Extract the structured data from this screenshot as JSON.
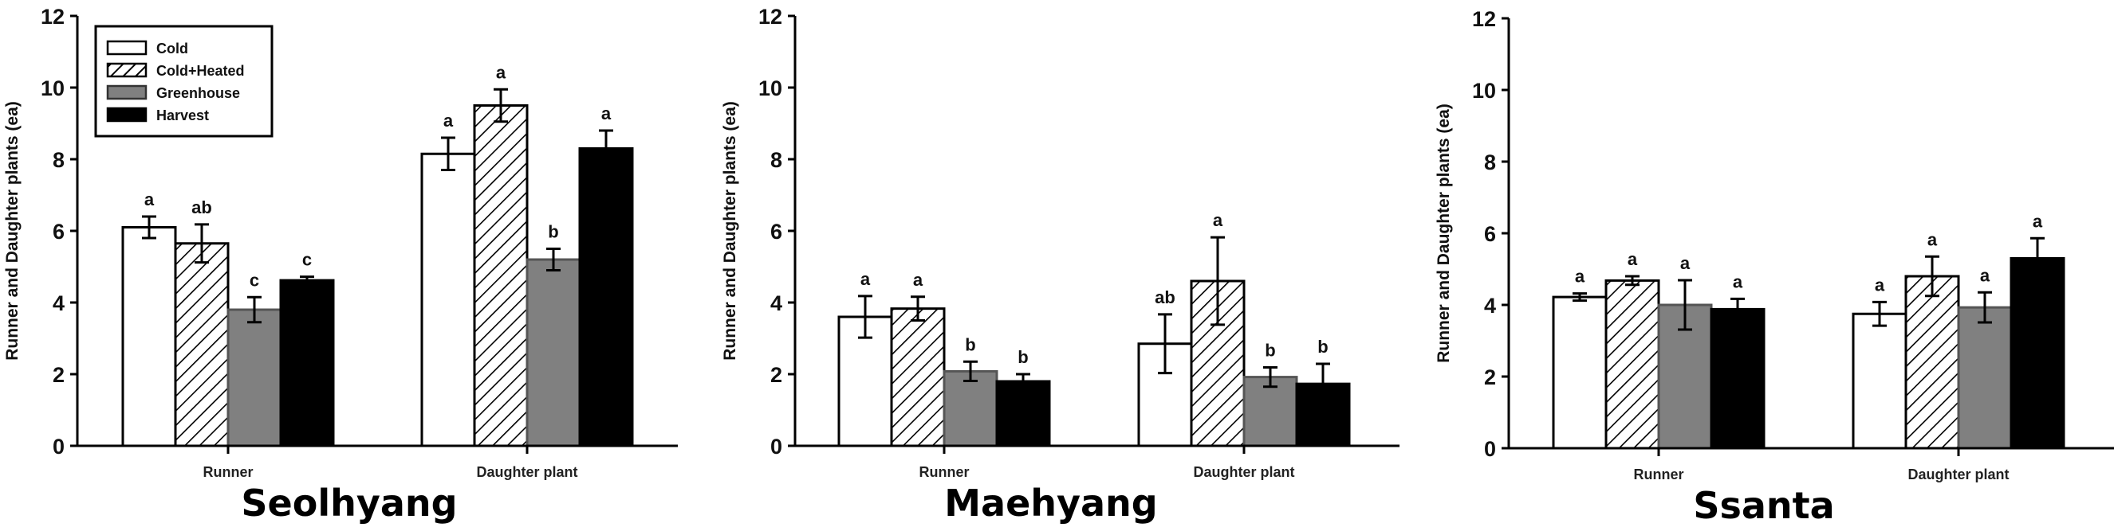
{
  "figure": {
    "y_axis_label": "Runner and Daughter plants (ea)",
    "y_ticks": [
      0,
      2,
      4,
      6,
      8,
      10,
      12
    ],
    "categories": [
      "Runner",
      "Daughter plant"
    ],
    "legend": [
      {
        "name": "Cold",
        "fill": "#ffffff",
        "pattern": "none"
      },
      {
        "name": "Cold+Heated",
        "fill": "#ffffff",
        "pattern": "diagonal-hatch"
      },
      {
        "name": "Greenhouse",
        "fill": "#808080",
        "pattern": "none"
      },
      {
        "name": "Harvest",
        "fill": "#000000",
        "pattern": "none"
      }
    ]
  },
  "chart_data": [
    {
      "type": "bar",
      "title": "Seolhyang",
      "xlabel": "",
      "ylabel": "Runner and Daughter plants (ea)",
      "ylim": [
        0,
        12
      ],
      "yticks": [
        0,
        2,
        4,
        6,
        8,
        10,
        12
      ],
      "grid": false,
      "legend_position": "upper-left",
      "categories": [
        "Runner",
        "Daughter plant"
      ],
      "series": [
        {
          "name": "Cold",
          "values": [
            6.1,
            8.15
          ],
          "errors": [
            0.3,
            0.45
          ],
          "letters": [
            "a",
            "a"
          ]
        },
        {
          "name": "Cold+Heated",
          "values": [
            5.65,
            9.5
          ],
          "errors": [
            0.53,
            0.45
          ],
          "letters": [
            "ab",
            "a"
          ]
        },
        {
          "name": "Greenhouse",
          "values": [
            3.8,
            5.2
          ],
          "errors": [
            0.35,
            0.3
          ],
          "letters": [
            "c",
            "b"
          ]
        },
        {
          "name": "Harvest",
          "values": [
            4.62,
            8.3
          ],
          "errors": [
            0.1,
            0.5
          ],
          "letters": [
            "c",
            "a"
          ]
        }
      ]
    },
    {
      "type": "bar",
      "title": "Maehyang",
      "xlabel": "",
      "ylabel": "Runner and Daughter plants (ea)",
      "ylim": [
        0,
        12
      ],
      "yticks": [
        0,
        2,
        4,
        6,
        8,
        10,
        12
      ],
      "grid": false,
      "categories": [
        "Runner",
        "Daughter plant"
      ],
      "series": [
        {
          "name": "Cold",
          "values": [
            3.6,
            2.85
          ],
          "errors": [
            0.58,
            0.82
          ],
          "letters": [
            "a",
            "ab"
          ]
        },
        {
          "name": "Cold+Heated",
          "values": [
            3.83,
            4.6
          ],
          "errors": [
            0.33,
            1.22
          ],
          "letters": [
            "a",
            "a"
          ]
        },
        {
          "name": "Greenhouse",
          "values": [
            2.08,
            1.92
          ],
          "errors": [
            0.27,
            0.27
          ],
          "letters": [
            "b",
            "b"
          ]
        },
        {
          "name": "Harvest",
          "values": [
            1.8,
            1.73
          ],
          "errors": [
            0.2,
            0.56
          ],
          "letters": [
            "b",
            "b"
          ]
        }
      ]
    },
    {
      "type": "bar",
      "title": "Ssanta",
      "xlabel": "",
      "ylabel": "Runner and Daughter plants (ea)",
      "ylim": [
        0,
        12
      ],
      "yticks": [
        0,
        2,
        4,
        6,
        8,
        10,
        12
      ],
      "grid": false,
      "categories": [
        "Runner",
        "Daughter plant"
      ],
      "series": [
        {
          "name": "Cold",
          "values": [
            4.22,
            3.75
          ],
          "errors": [
            0.1,
            0.33
          ],
          "letters": [
            "a",
            "a"
          ]
        },
        {
          "name": "Cold+Heated",
          "values": [
            4.68,
            4.8
          ],
          "errors": [
            0.12,
            0.55
          ],
          "letters": [
            "a",
            "a"
          ]
        },
        {
          "name": "Greenhouse",
          "values": [
            4.0,
            3.93
          ],
          "errors": [
            0.69,
            0.42
          ],
          "letters": [
            "a",
            "a"
          ]
        },
        {
          "name": "Harvest",
          "values": [
            3.88,
            5.3
          ],
          "errors": [
            0.29,
            0.56
          ],
          "letters": [
            "a",
            "a"
          ]
        }
      ]
    }
  ]
}
